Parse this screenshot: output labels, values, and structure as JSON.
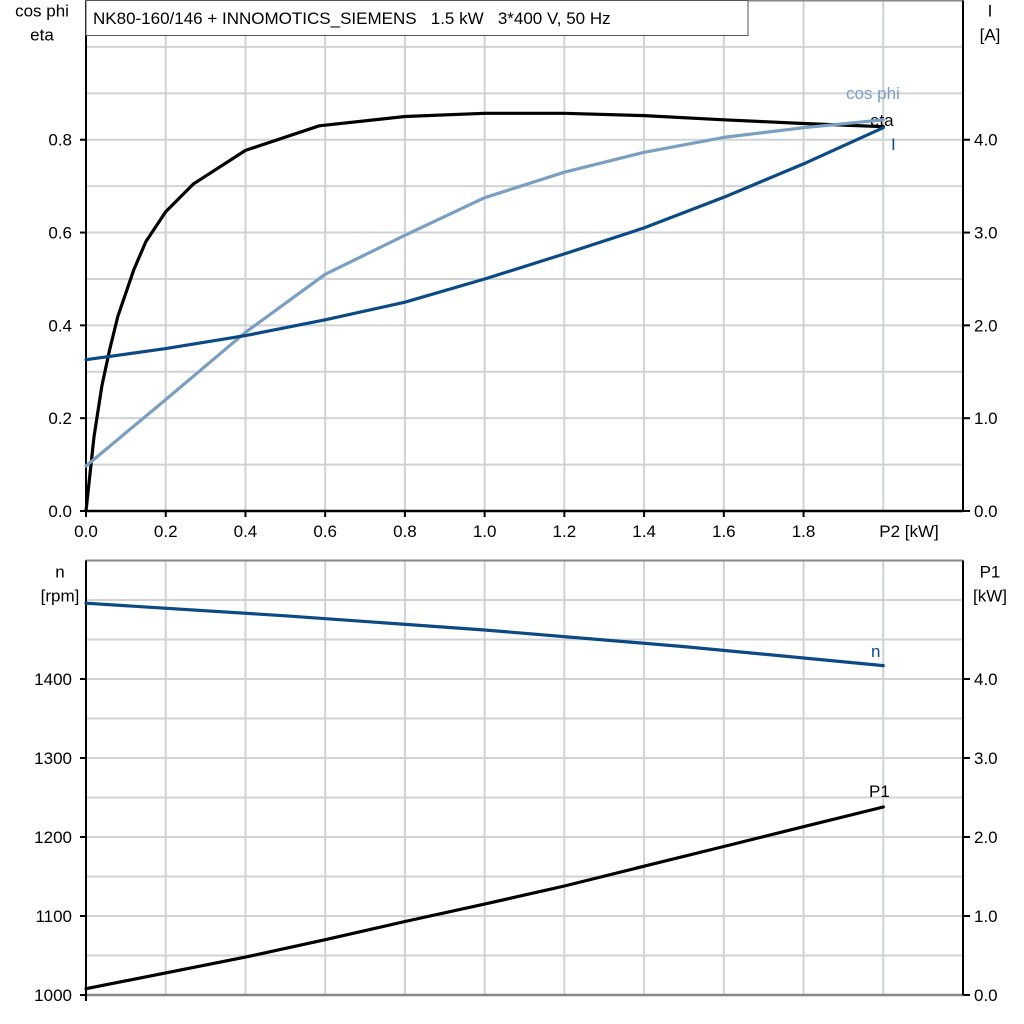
{
  "chart_data": [
    {
      "type": "line",
      "title": "NK80-160/146 + INNOMOTICS_SIEMENS   1.5 kW   3*400 V, 50 Hz",
      "xlabel": "P2 [kW]",
      "ylabel": [
        "cos phi",
        "eta"
      ],
      "y2label": [
        "I",
        "[A]"
      ],
      "xlim": [
        0,
        2.2
      ],
      "ylim": [
        0,
        1.1
      ],
      "y2lim": [
        0,
        5.5
      ],
      "grid": true,
      "x_tick_labels": [
        "0.0",
        "0.2",
        "0.4",
        "0.6",
        "0.8",
        "1.0",
        "1.2",
        "1.4",
        "1.6",
        "1.8"
      ],
      "y_tick_labels": [
        "0.0",
        "0.2",
        "0.4",
        "0.6",
        "0.8"
      ],
      "y2_tick_labels": [
        "0.0",
        "1.0",
        "2.0",
        "3.0",
        "4.0"
      ],
      "series": [
        {
          "name": "eta",
          "axis": "left",
          "color": "#000000",
          "x": [
            0,
            0.02,
            0.04,
            0.06,
            0.08,
            0.1,
            0.12,
            0.15,
            0.2,
            0.27,
            0.4,
            0.585,
            0.8,
            1.0,
            1.2,
            1.4,
            1.6,
            1.8,
            2.0
          ],
          "y": [
            0,
            0.16,
            0.27,
            0.35,
            0.42,
            0.47,
            0.52,
            0.58,
            0.645,
            0.705,
            0.777,
            0.83,
            0.85,
            0.857,
            0.857,
            0.852,
            0.843,
            0.835,
            0.828
          ]
        },
        {
          "name": "cos phi",
          "axis": "left",
          "color": "#7a9fc0",
          "x": [
            0,
            0.2,
            0.4,
            0.6,
            0.8,
            1.0,
            1.2,
            1.4,
            1.6,
            1.8,
            2.0
          ],
          "y": [
            0.097,
            0.24,
            0.385,
            0.51,
            0.594,
            0.675,
            0.73,
            0.773,
            0.805,
            0.826,
            0.843
          ]
        },
        {
          "name": "I",
          "axis": "right",
          "color": "#0b4a84",
          "x": [
            0,
            0.2,
            0.4,
            0.6,
            0.8,
            1.0,
            1.2,
            1.4,
            1.6,
            1.8,
            2.0
          ],
          "y": [
            1.63,
            1.75,
            1.89,
            2.06,
            2.25,
            2.5,
            2.77,
            3.05,
            3.38,
            3.74,
            4.13
          ]
        }
      ]
    },
    {
      "type": "line",
      "ylabel": [
        "n",
        "[rpm]"
      ],
      "y2label": [
        "P1",
        "[kW]"
      ],
      "xlim": [
        0,
        2.2
      ],
      "ylim": [
        1000,
        1550
      ],
      "y2lim": [
        0,
        5.5
      ],
      "grid": true,
      "y_tick_labels": [
        "1000",
        "1100",
        "1200",
        "1300",
        "1400"
      ],
      "y2_tick_labels": [
        "0.0",
        "1.0",
        "2.0",
        "3.0",
        "4.0"
      ],
      "series": [
        {
          "name": "n",
          "axis": "left",
          "color": "#0b4a84",
          "x": [
            0,
            0.5,
            1.0,
            1.5,
            2.0
          ],
          "y": [
            1496,
            1480,
            1462,
            1441,
            1417
          ]
        },
        {
          "name": "P1",
          "axis": "right",
          "color": "#000000",
          "x": [
            0,
            0.2,
            0.4,
            0.6,
            0.8,
            1.0,
            1.2,
            1.4,
            1.6,
            1.8,
            2.0
          ],
          "y": [
            0.08,
            0.28,
            0.48,
            0.7,
            0.93,
            1.15,
            1.38,
            1.63,
            1.88,
            2.13,
            2.38
          ]
        }
      ]
    }
  ]
}
